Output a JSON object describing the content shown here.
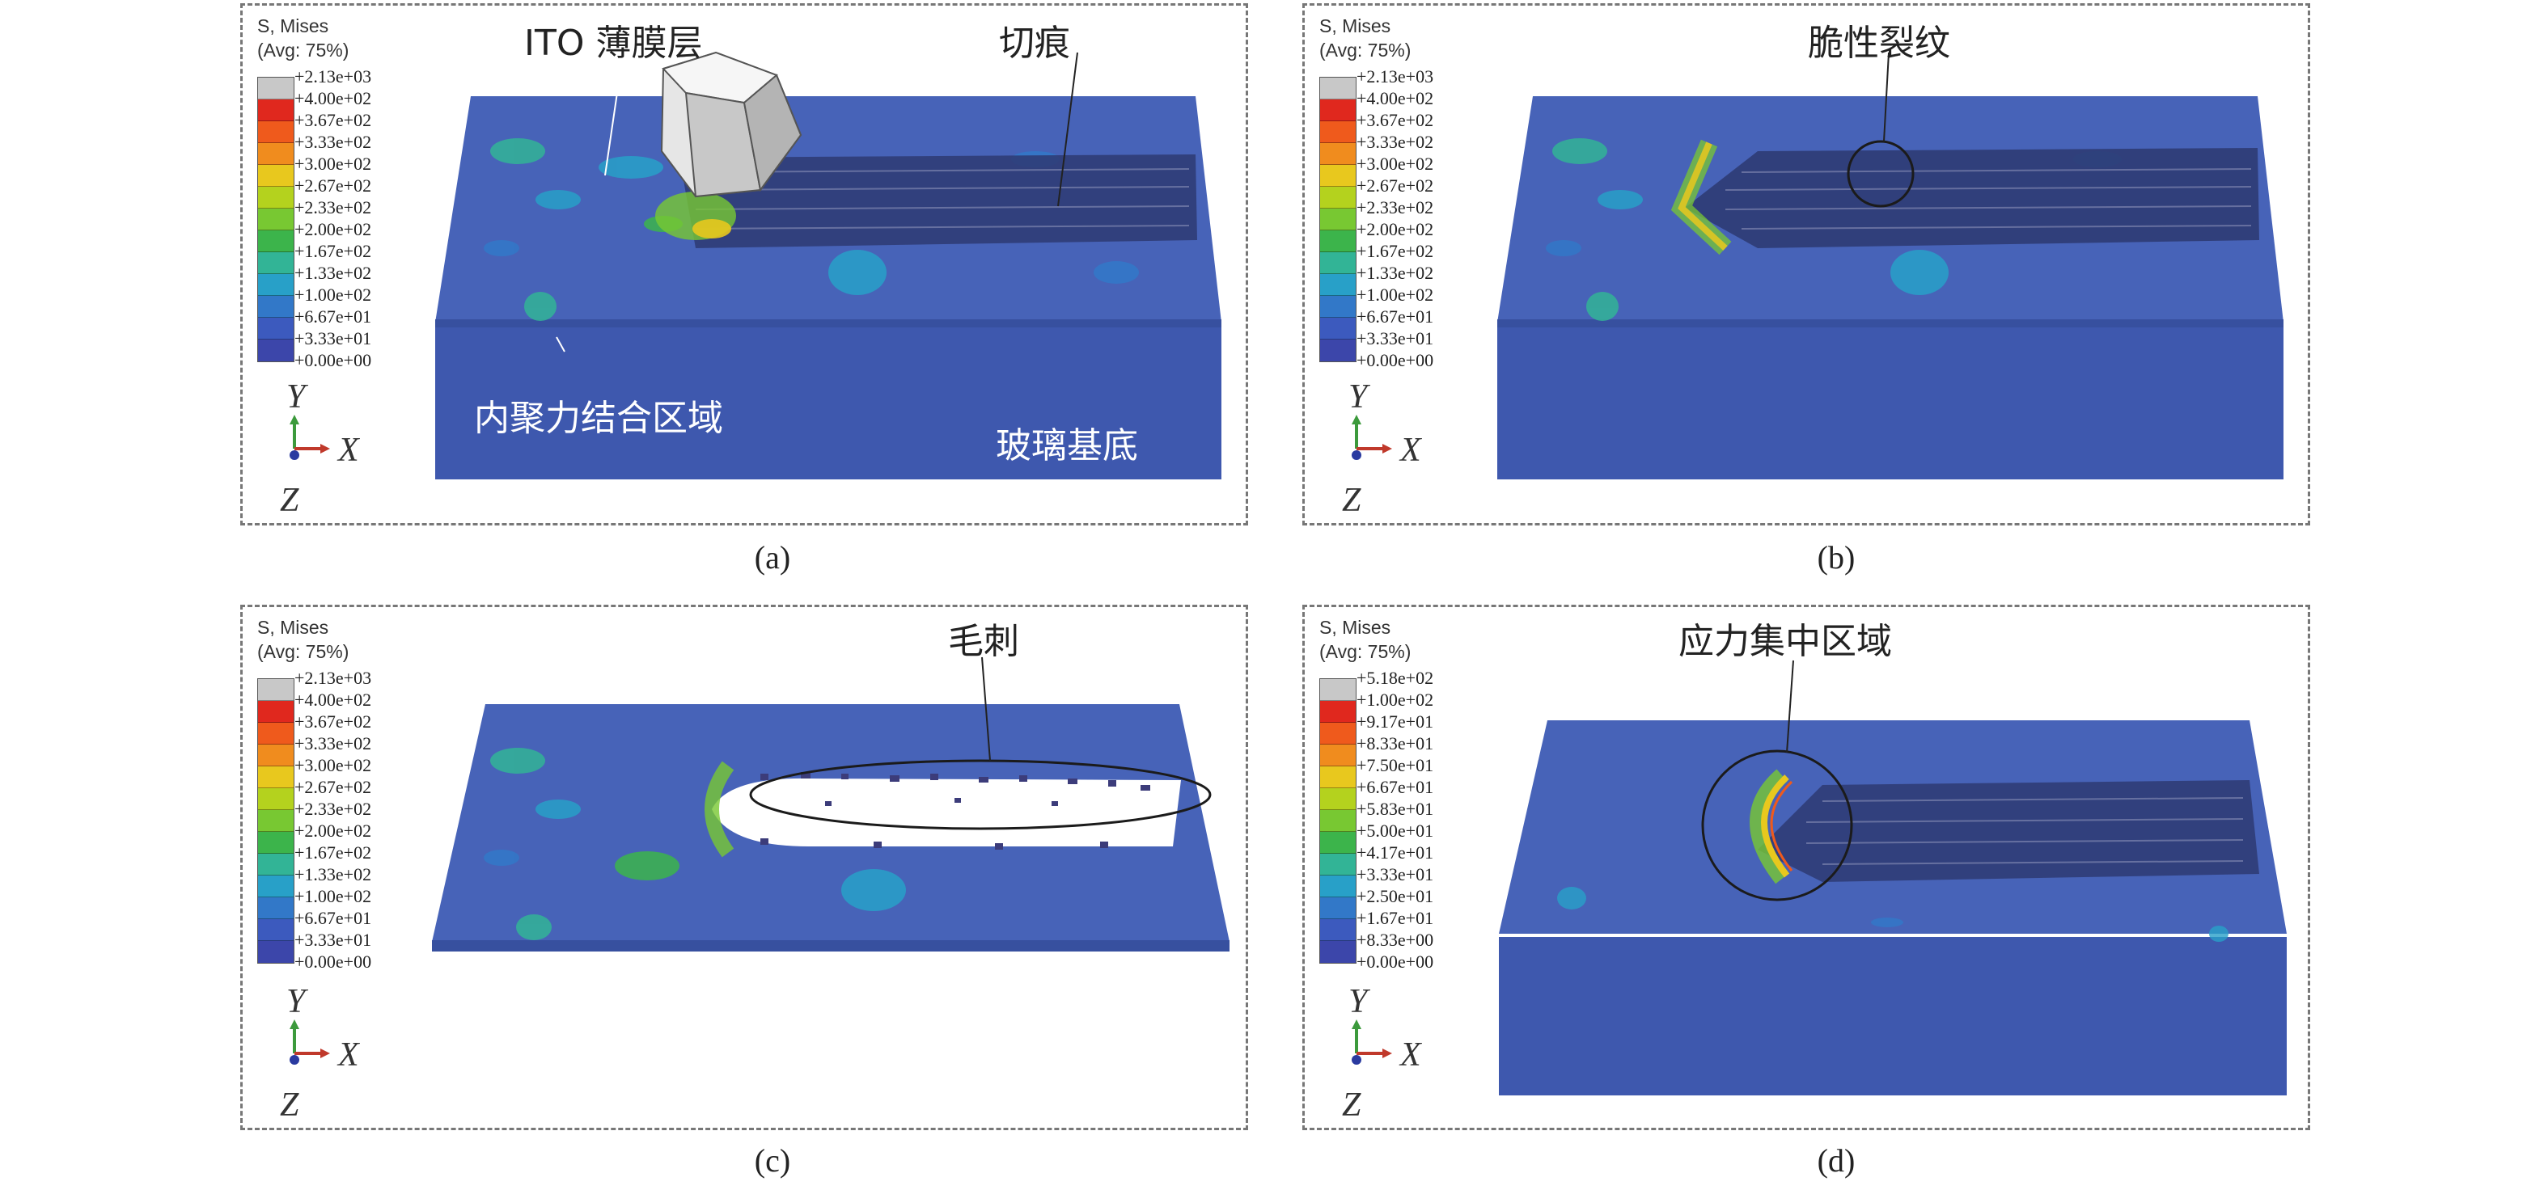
{
  "panels": [
    {
      "id": "a",
      "caption": "(a)",
      "legend": {
        "title": "S, Mises",
        "subtitle": "(Avg: 75%)",
        "values": [
          "+2.13e+03",
          "+4.00e+02",
          "+3.67e+02",
          "+3.33e+02",
          "+3.00e+02",
          "+2.67e+02",
          "+2.33e+02",
          "+2.00e+02",
          "+1.67e+02",
          "+1.33e+02",
          "+1.00e+02",
          "+6.67e+01",
          "+3.33e+01",
          "+0.00e+00"
        ]
      },
      "axes": {
        "y": "Y",
        "x": "X",
        "z": "Z"
      },
      "annotations": {
        "ito_layer": "ITO 薄膜层",
        "cut_mark": "切痕",
        "cohesive_region": "内聚力结合区域",
        "glass_substrate": "玻璃基底"
      }
    },
    {
      "id": "b",
      "caption": "(b)",
      "legend": {
        "title": "S, Mises",
        "subtitle": "(Avg: 75%)",
        "values": [
          "+2.13e+03",
          "+4.00e+02",
          "+3.67e+02",
          "+3.33e+02",
          "+3.00e+02",
          "+2.67e+02",
          "+2.33e+02",
          "+2.00e+02",
          "+1.67e+02",
          "+1.33e+02",
          "+1.00e+02",
          "+6.67e+01",
          "+3.33e+01",
          "+0.00e+00"
        ]
      },
      "axes": {
        "y": "Y",
        "x": "X",
        "z": "Z"
      },
      "annotations": {
        "brittle_crack": "脆性裂纹"
      }
    },
    {
      "id": "c",
      "caption": "(c)",
      "legend": {
        "title": "S, Mises",
        "subtitle": "(Avg: 75%)",
        "values": [
          "+2.13e+03",
          "+4.00e+02",
          "+3.67e+02",
          "+3.33e+02",
          "+3.00e+02",
          "+2.67e+02",
          "+2.33e+02",
          "+2.00e+02",
          "+1.67e+02",
          "+1.33e+02",
          "+1.00e+02",
          "+6.67e+01",
          "+3.33e+01",
          "+0.00e+00"
        ]
      },
      "axes": {
        "y": "Y",
        "x": "X",
        "z": "Z"
      },
      "annotations": {
        "burr": "毛刺"
      }
    },
    {
      "id": "d",
      "caption": "(d)",
      "legend": {
        "title": "S, Mises",
        "subtitle": "(Avg: 75%)",
        "values": [
          "+5.18e+02",
          "+1.00e+02",
          "+9.17e+01",
          "+8.33e+01",
          "+7.50e+01",
          "+6.67e+01",
          "+5.83e+01",
          "+5.00e+01",
          "+4.17e+01",
          "+3.33e+01",
          "+2.50e+01",
          "+1.67e+01",
          "+8.33e+00",
          "+0.00e+00"
        ]
      },
      "axes": {
        "y": "Y",
        "x": "X",
        "z": "Z"
      },
      "annotations": {
        "stress_concentration": "应力集中区域"
      }
    }
  ],
  "colors": {
    "scale": [
      "#c8c8c8",
      "#e0281e",
      "#ef5a1c",
      "#f08c1e",
      "#e8c81e",
      "#b4d21e",
      "#78c832",
      "#3cb44b",
      "#32b496",
      "#28a0c8",
      "#3278c8",
      "#3c5abe",
      "#3c46aa"
    ],
    "model_top": "#4561b6",
    "model_front": "#3e58ae",
    "model_side": "#374f9e",
    "groove": "#2e3a72"
  }
}
